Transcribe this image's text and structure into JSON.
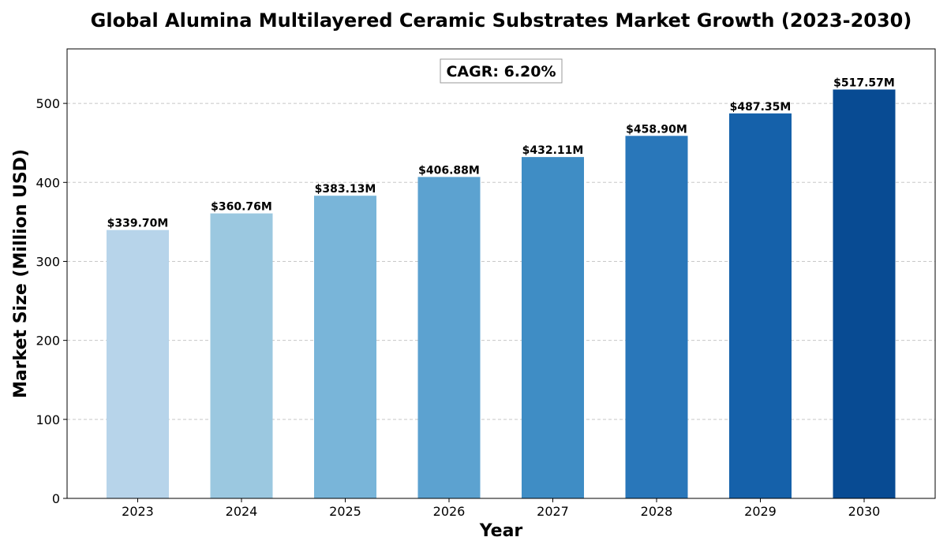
{
  "chart_data": {
    "type": "bar",
    "title": "Global Alumina Multilayered Ceramic Substrates Market Growth (2023-2030)",
    "xlabel": "Year",
    "ylabel": "Market Size (Million USD)",
    "categories": [
      "2023",
      "2024",
      "2025",
      "2026",
      "2027",
      "2028",
      "2029",
      "2030"
    ],
    "values": [
      339.7,
      360.76,
      383.13,
      406.88,
      432.11,
      458.9,
      487.35,
      517.57
    ],
    "data_labels": [
      "$339.70M",
      "$360.76M",
      "$383.13M",
      "$406.88M",
      "$432.11M",
      "$458.90M",
      "$487.35M",
      "$517.57M"
    ],
    "ylim": [
      0,
      569
    ],
    "yticks": [
      0,
      100,
      200,
      300,
      400,
      500
    ],
    "grid": "y-dashed",
    "annotation": "CAGR: 6.20%",
    "bar_colors": [
      "#b7d4ea",
      "#9bc8e0",
      "#79b5d9",
      "#5ca2d0",
      "#3f8dc5",
      "#2977ba",
      "#1561aa",
      "#084b93"
    ]
  }
}
